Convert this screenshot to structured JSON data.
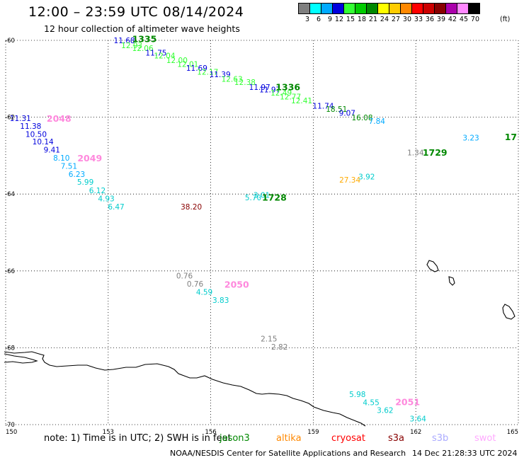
{
  "header": {
    "title": "12:00 – 23:59 UTC 08/14/2024",
    "subtitle": "12 hour collection of altimeter wave heights"
  },
  "legend": {
    "unit": "(ft)",
    "bins": [
      {
        "label": "3",
        "color": "#7f7f7f"
      },
      {
        "label": "6",
        "color": "#00ffff"
      },
      {
        "label": "9",
        "color": "#00aaff"
      },
      {
        "label": "12",
        "color": "#0000dd"
      },
      {
        "label": "15",
        "color": "#33ff33"
      },
      {
        "label": "18",
        "color": "#00cc00"
      },
      {
        "label": "21",
        "color": "#008800"
      },
      {
        "label": "24",
        "color": "#ffff00"
      },
      {
        "label": "27",
        "color": "#ffcc00"
      },
      {
        "label": "30",
        "color": "#ff8800"
      },
      {
        "label": "33",
        "color": "#ff0000"
      },
      {
        "label": "36",
        "color": "#cc0000"
      },
      {
        "label": "39",
        "color": "#880000"
      },
      {
        "label": "42",
        "color": "#aa00aa"
      },
      {
        "label": "45",
        "color": "#ff88ff"
      },
      {
        "label": "70",
        "color": "#000000"
      }
    ]
  },
  "axes": {
    "lat_labels": [
      "-60",
      "-62",
      "-64",
      "-66",
      "-68",
      "-70"
    ],
    "lon_labels": [
      "150",
      "153",
      "156",
      "159",
      "162",
      "165"
    ]
  },
  "observations": [
    {
      "text": "11.68",
      "lon": 153.16,
      "lat": -60.07,
      "color": "#0000dd"
    },
    {
      "text": "12.93",
      "lon": 153.38,
      "lat": -60.2,
      "color": "#33ff33"
    },
    {
      "text": "12.06",
      "lon": 153.7,
      "lat": -60.28,
      "color": "#33ff33"
    },
    {
      "text": "11.75",
      "lon": 154.09,
      "lat": -60.4,
      "color": "#0000dd"
    },
    {
      "text": "12.04",
      "lon": 154.34,
      "lat": -60.47,
      "color": "#33ff33"
    },
    {
      "text": "12.00",
      "lon": 154.7,
      "lat": -60.59,
      "color": "#33ff33"
    },
    {
      "text": "12.01",
      "lon": 155.02,
      "lat": -60.69,
      "color": "#33ff33"
    },
    {
      "text": "11.69",
      "lon": 155.28,
      "lat": -60.79,
      "color": "#0000dd"
    },
    {
      "text": "12.17",
      "lon": 155.6,
      "lat": -60.89,
      "color": "#33ff33"
    },
    {
      "text": "11.39",
      "lon": 155.96,
      "lat": -60.96,
      "color": "#0000dd"
    },
    {
      "text": "12.63",
      "lon": 156.31,
      "lat": -61.08,
      "color": "#33ff33"
    },
    {
      "text": "12.38",
      "lon": 156.69,
      "lat": -61.16,
      "color": "#33ff33"
    },
    {
      "text": "11.97",
      "lon": 157.12,
      "lat": -61.29,
      "color": "#0000dd"
    },
    {
      "text": "11.97",
      "lon": 157.42,
      "lat": -61.35,
      "color": "#0000dd"
    },
    {
      "text": "12.49",
      "lon": 157.75,
      "lat": -61.44,
      "color": "#33ff33"
    },
    {
      "text": "12.77",
      "lon": 158.02,
      "lat": -61.54,
      "color": "#33ff33"
    },
    {
      "text": "12.41",
      "lon": 158.35,
      "lat": -61.64,
      "color": "#33ff33"
    },
    {
      "text": "11.74",
      "lon": 158.98,
      "lat": -61.78,
      "color": "#0000dd"
    },
    {
      "text": "18.51",
      "lon": 159.37,
      "lat": -61.86,
      "color": "#008800"
    },
    {
      "text": "9.07",
      "lon": 159.75,
      "lat": -61.96,
      "color": "#0000dd"
    },
    {
      "text": "16.08",
      "lon": 160.12,
      "lat": -62.08,
      "color": "#008800"
    },
    {
      "text": "7.84",
      "lon": 160.62,
      "lat": -62.17,
      "color": "#00aaff"
    },
    {
      "text": "3.23",
      "lon": 163.37,
      "lat": -62.61,
      "color": "#00aaff"
    },
    {
      "text": "1.34",
      "lon": 161.75,
      "lat": -62.99,
      "color": "#7f7f7f"
    },
    {
      "text": "27.34",
      "lon": 159.76,
      "lat": -63.7,
      "color": "#ffaa00"
    },
    {
      "text": "3.92",
      "lon": 160.32,
      "lat": -63.62,
      "color": "#00cccc"
    },
    {
      "text": "11.31",
      "lon": 150.12,
      "lat": -62.1,
      "color": "#0000dd"
    },
    {
      "text": "11.38",
      "lon": 150.42,
      "lat": -62.3,
      "color": "#0000dd"
    },
    {
      "text": "10.50",
      "lon": 150.58,
      "lat": -62.51,
      "color": "#0000dd"
    },
    {
      "text": "10.14",
      "lon": 150.78,
      "lat": -62.71,
      "color": "#0000dd"
    },
    {
      "text": "9.41",
      "lon": 151.11,
      "lat": -62.92,
      "color": "#0000dd"
    },
    {
      "text": "8.10",
      "lon": 151.39,
      "lat": -63.13,
      "color": "#00aaff"
    },
    {
      "text": "7.51",
      "lon": 151.61,
      "lat": -63.34,
      "color": "#00aaff"
    },
    {
      "text": "6.23",
      "lon": 151.84,
      "lat": -63.55,
      "color": "#00aaff"
    },
    {
      "text": "5.99",
      "lon": 152.09,
      "lat": -63.76,
      "color": "#00cccc"
    },
    {
      "text": "6.12",
      "lon": 152.44,
      "lat": -63.98,
      "color": "#00cccc"
    },
    {
      "text": "4.93",
      "lon": 152.7,
      "lat": -64.19,
      "color": "#00cccc"
    },
    {
      "text": "6.47",
      "lon": 152.99,
      "lat": -64.4,
      "color": "#00cccc"
    },
    {
      "text": "5.70",
      "lon": 157.0,
      "lat": -64.16,
      "color": "#00cccc"
    },
    {
      "text": "3.01",
      "lon": 157.25,
      "lat": -64.1,
      "color": "#00cccc"
    },
    {
      "text": "38.20",
      "lon": 155.12,
      "lat": -64.4,
      "color": "#880000"
    },
    {
      "text": "0.76",
      "lon": 154.99,
      "lat": -66.2,
      "color": "#7f7f7f"
    },
    {
      "text": "0.76",
      "lon": 155.3,
      "lat": -66.41,
      "color": "#7f7f7f"
    },
    {
      "text": "4.59",
      "lon": 155.57,
      "lat": -66.62,
      "color": "#00cccc"
    },
    {
      "text": "3.83",
      "lon": 156.05,
      "lat": -66.83,
      "color": "#00cccc"
    },
    {
      "text": "2.15",
      "lon": 157.46,
      "lat": -67.84,
      "color": "#7f7f7f"
    },
    {
      "text": "2.82",
      "lon": 157.77,
      "lat": -68.05,
      "color": "#7f7f7f"
    },
    {
      "text": "5.98",
      "lon": 160.05,
      "lat": -69.28,
      "color": "#00cccc"
    },
    {
      "text": "4.55",
      "lon": 160.45,
      "lat": -69.49,
      "color": "#00cccc"
    },
    {
      "text": "3.62",
      "lon": 160.86,
      "lat": -69.7,
      "color": "#00cccc"
    },
    {
      "text": "3.64",
      "lon": 161.82,
      "lat": -69.92,
      "color": "#00cccc"
    }
  ],
  "pass_labels": [
    {
      "text": "1335",
      "lon": 153.7,
      "lat": -60.05,
      "color": "#008800"
    },
    {
      "text": "1336",
      "lon": 157.9,
      "lat": -61.3,
      "color": "#008800"
    },
    {
      "text": "1729",
      "lon": 162.2,
      "lat": -63.0,
      "color": "#008800"
    },
    {
      "text": "17",
      "lon": 164.6,
      "lat": -62.6,
      "color": "#008800"
    },
    {
      "text": "1728",
      "lon": 157.5,
      "lat": -64.17,
      "color": "#008800"
    },
    {
      "text": "2048",
      "lon": 151.2,
      "lat": -62.12,
      "color": "#ff88dd"
    },
    {
      "text": "2049",
      "lon": 152.1,
      "lat": -63.15,
      "color": "#ff88dd"
    },
    {
      "text": "2050",
      "lon": 156.4,
      "lat": -66.44,
      "color": "#ff88dd"
    },
    {
      "text": "2051",
      "lon": 161.4,
      "lat": -69.49,
      "color": "#ff88dd"
    }
  ],
  "footer": {
    "note": "note:  1) Time is in UTC; 2) SWH is in feet",
    "missions": [
      {
        "name": "jason3",
        "color": "#008800"
      },
      {
        "name": "altika",
        "color": "#ff8800"
      },
      {
        "name": "cryosat",
        "color": "#ff0000"
      },
      {
        "name": "s3a",
        "color": "#880000"
      },
      {
        "name": "s3b",
        "color": "#aaaaff"
      },
      {
        "name": "swot",
        "color": "#ffaaff"
      }
    ],
    "credit": "NOAA/NESDIS Center for Satellite Applications and Research",
    "timestamp": "14 Dec 21:28:33 UTC 2024"
  }
}
